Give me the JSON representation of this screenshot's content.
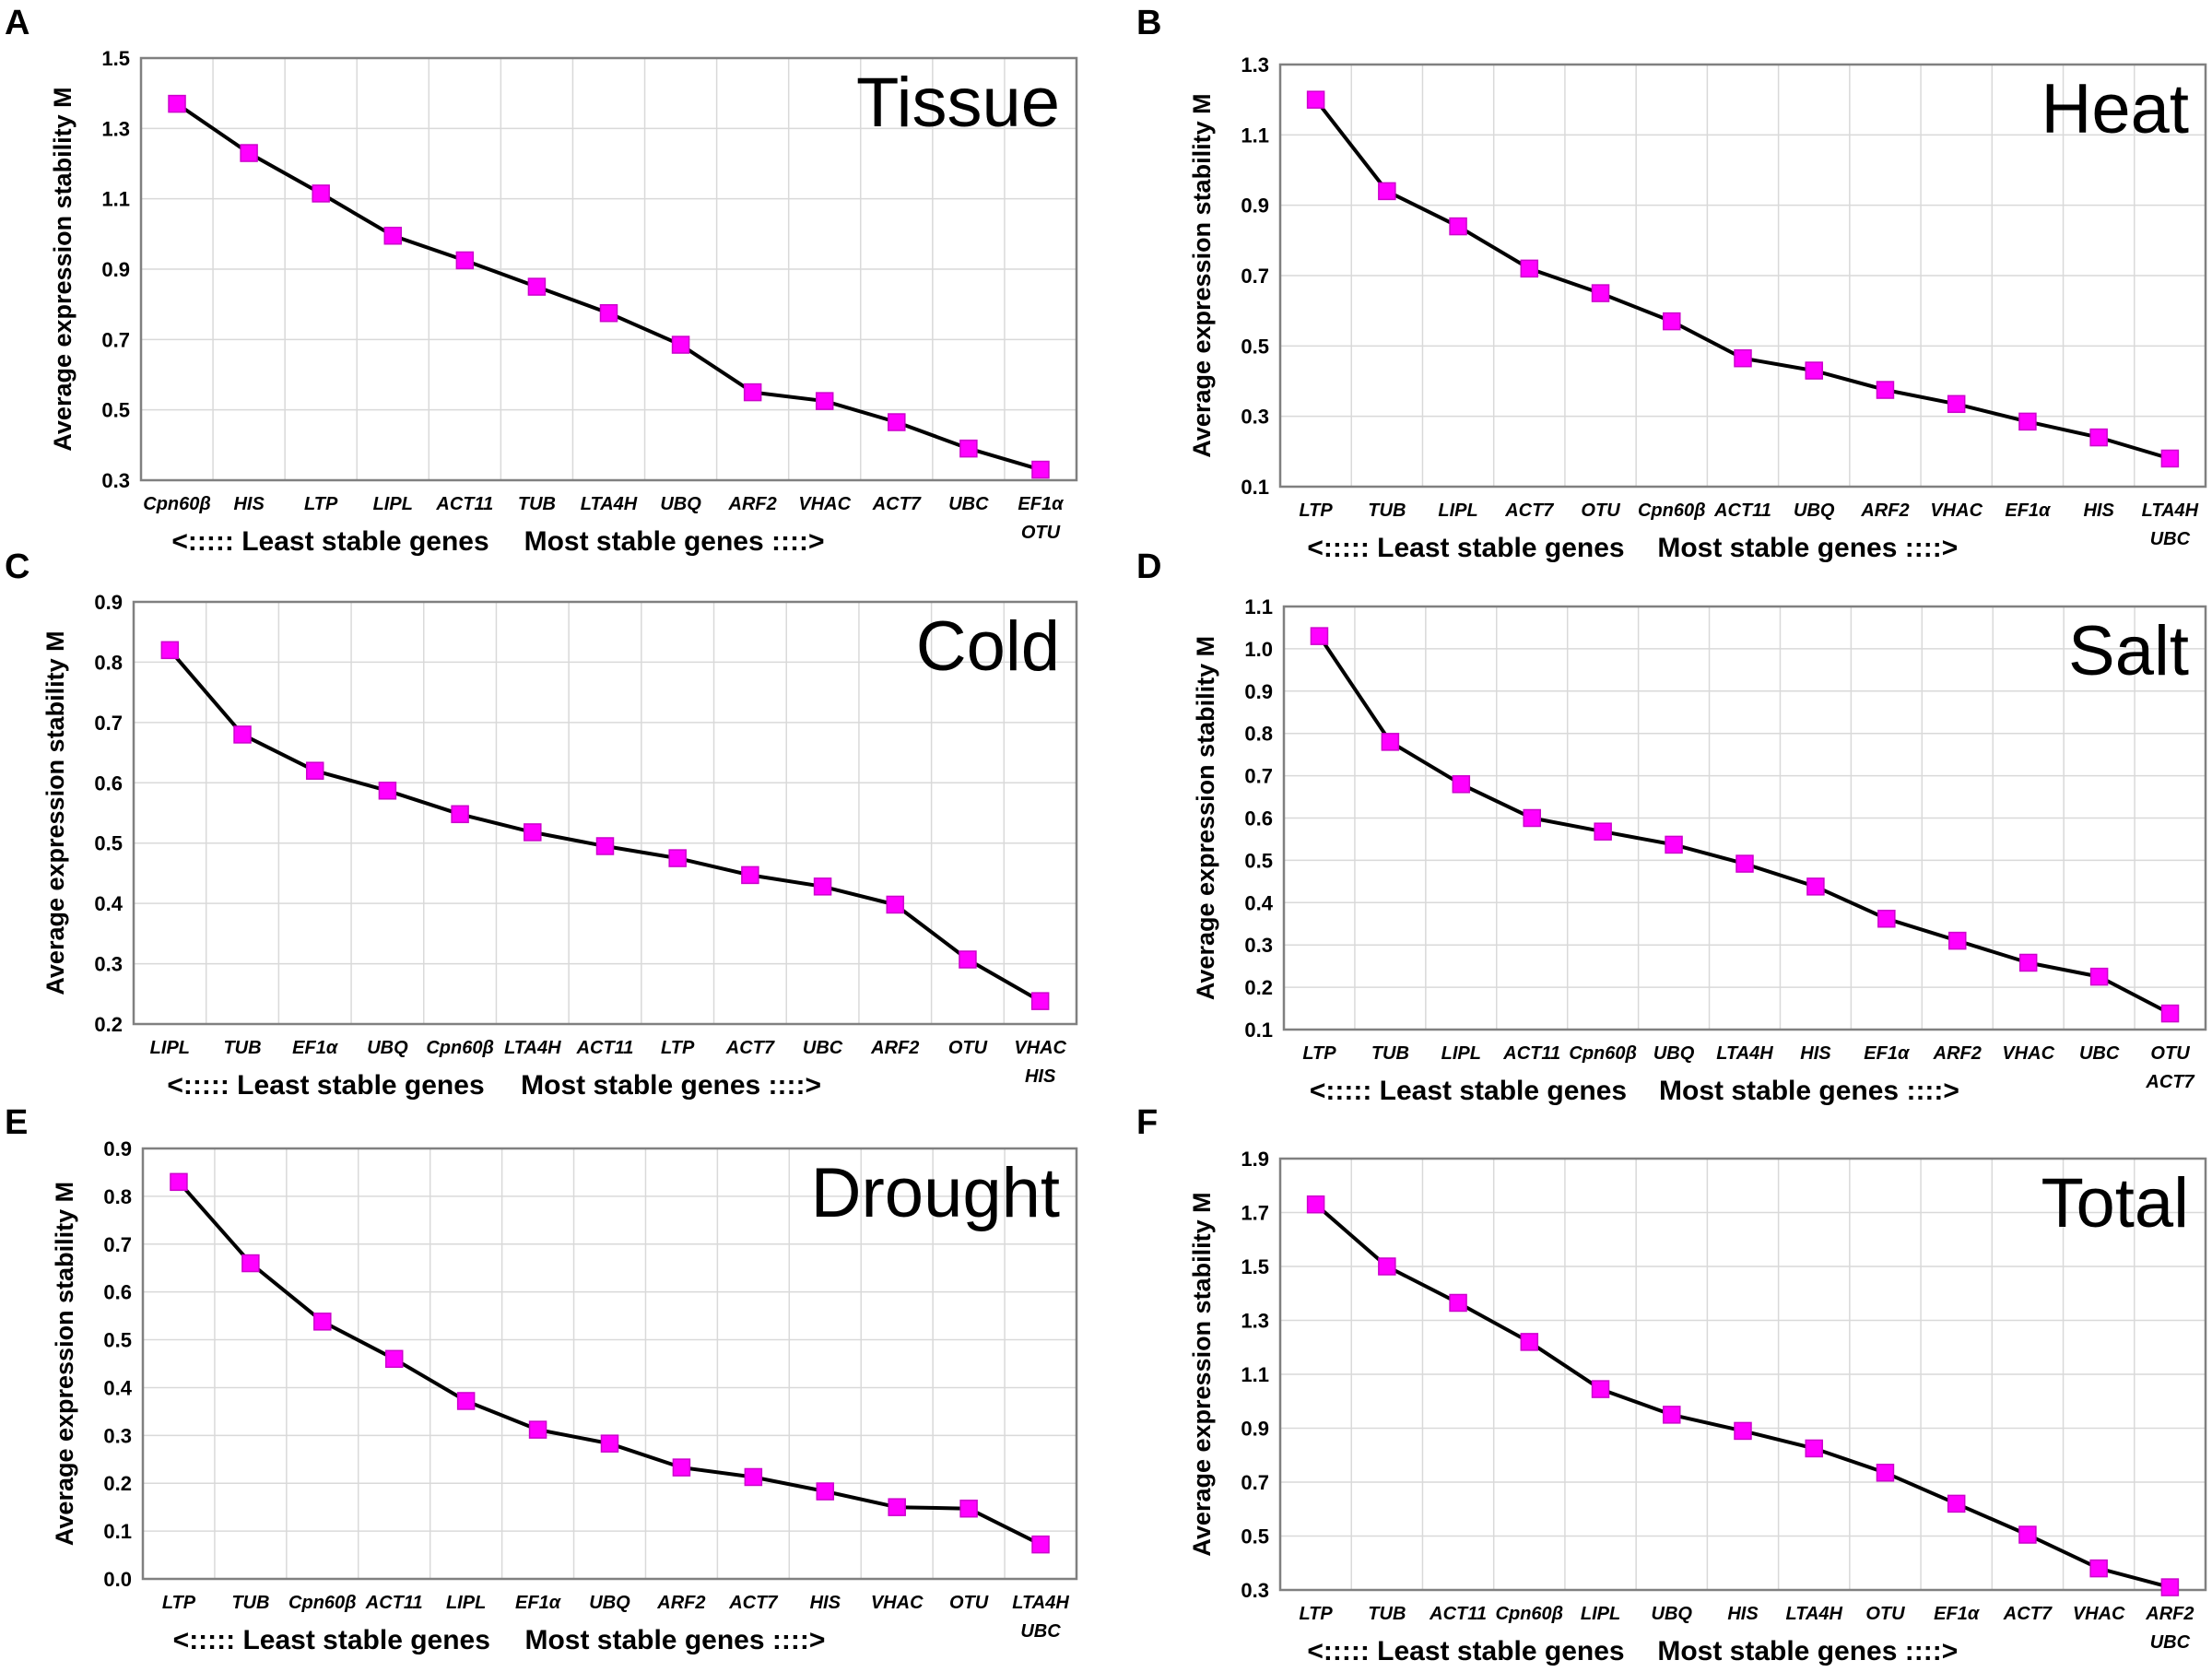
{
  "figure": {
    "ylabel": "Average expression stability M",
    "xlabel_left": "<:::::  Least stable genes",
    "xlabel_right": "Most stable genes ::::>",
    "line_color": "#000000",
    "marker_color": "#ff00ff",
    "marker_border": "#cc00cc",
    "grid_color": "#d9d9d9",
    "frame_color": "#808080"
  },
  "chart_data": [
    {
      "type": "line",
      "panel": "A",
      "title": "Tissue",
      "categories": [
        "Cpn60β",
        "HIS",
        "LTP",
        "LIPL",
        "ACT11",
        "TUB",
        "LTA4H",
        "UBQ",
        "ARF2",
        "VHAC",
        "ACT7",
        "UBC",
        "EF1α"
      ],
      "last_extra": "OTU",
      "values": [
        1.37,
        1.23,
        1.115,
        0.995,
        0.925,
        0.85,
        0.775,
        0.685,
        0.55,
        0.525,
        0.465,
        0.39,
        0.33
      ],
      "ylim": [
        0.3,
        1.5
      ],
      "yticks": [
        "0.3",
        "0.5",
        "0.7",
        "0.9",
        "1.1",
        "1.3",
        "1.5"
      ],
      "xlabel": "<:::::  Least stable genes   Most stable genes ::::>",
      "ylabel": "Average expression stability M"
    },
    {
      "type": "line",
      "panel": "B",
      "title": "Heat",
      "categories": [
        "LTP",
        "TUB",
        "LIPL",
        "ACT7",
        "OTU",
        "Cpn60β",
        "ACT11",
        "UBQ",
        "ARF2",
        "VHAC",
        "EF1α",
        "HIS",
        "LTA4H"
      ],
      "last_extra": "UBC",
      "values": [
        1.2,
        0.94,
        0.84,
        0.72,
        0.65,
        0.57,
        0.465,
        0.43,
        0.375,
        0.335,
        0.285,
        0.24,
        0.18
      ],
      "ylim": [
        0.1,
        1.3
      ],
      "yticks": [
        "0.1",
        "0.3",
        "0.5",
        "0.7",
        "0.9",
        "1.1",
        "1.3"
      ],
      "xlabel": "<:::::  Least stable genes   Most stable genes ::::>",
      "ylabel": "Average expression stability M"
    },
    {
      "type": "line",
      "panel": "C",
      "title": "Cold",
      "categories": [
        "LIPL",
        "TUB",
        "EF1α",
        "UBQ",
        "Cpn60β",
        "LTA4H",
        "ACT11",
        "LTP",
        "ACT7",
        "UBC",
        "ARF2",
        "OTU",
        "VHAC"
      ],
      "last_extra": "HIS",
      "values": [
        0.82,
        0.68,
        0.62,
        0.587,
        0.548,
        0.518,
        0.495,
        0.475,
        0.447,
        0.428,
        0.398,
        0.307,
        0.238
      ],
      "ylim": [
        0.2,
        0.9
      ],
      "yticks": [
        "0.2",
        "0.3",
        "0.4",
        "0.5",
        "0.6",
        "0.7",
        "0.8",
        "0.9"
      ],
      "xlabel": "<:::::  Least stable genes   Most stable genes ::::>",
      "ylabel": "Average expression stability M"
    },
    {
      "type": "line",
      "panel": "D",
      "title": "Salt",
      "categories": [
        "LTP",
        "TUB",
        "LIPL",
        "ACT11",
        "Cpn60β",
        "UBQ",
        "LTA4H",
        "HIS",
        "EF1α",
        "ARF2",
        "VHAC",
        "UBC",
        "OTU"
      ],
      "last_extra": "ACT7",
      "values": [
        1.03,
        0.78,
        0.68,
        0.6,
        0.568,
        0.537,
        0.492,
        0.438,
        0.362,
        0.31,
        0.258,
        0.225,
        0.138
      ],
      "ylim": [
        0.1,
        1.1
      ],
      "yticks": [
        "0.1",
        "0.2",
        "0.3",
        "0.4",
        "0.5",
        "0.6",
        "0.7",
        "0.8",
        "0.9",
        "1.0",
        "1.1"
      ],
      "xlabel": "<:::::  Least stable genes   Most stable genes ::::>",
      "ylabel": "Average expression stability M"
    },
    {
      "type": "line",
      "panel": "E",
      "title": "Drought",
      "categories": [
        "LTP",
        "TUB",
        "Cpn60β",
        "ACT11",
        "LIPL",
        "EF1α",
        "UBQ",
        "ARF2",
        "ACT7",
        "HIS",
        "VHAC",
        "OTU",
        "LTA4H"
      ],
      "last_extra": "UBC",
      "values": [
        0.83,
        0.66,
        0.538,
        0.46,
        0.372,
        0.312,
        0.283,
        0.233,
        0.213,
        0.183,
        0.15,
        0.147,
        0.072
      ],
      "ylim": [
        0.0,
        0.9
      ],
      "yticks": [
        "0.0",
        "0.1",
        "0.2",
        "0.3",
        "0.4",
        "0.5",
        "0.6",
        "0.7",
        "0.8",
        "0.9"
      ],
      "xlabel": "<:::::  Least stable genes   Most stable genes ::::>",
      "ylabel": "Average expression stability M"
    },
    {
      "type": "line",
      "panel": "F",
      "title": "Total",
      "categories": [
        "LTP",
        "TUB",
        "ACT11",
        "Cpn60β",
        "LIPL",
        "UBQ",
        "HIS",
        "LTA4H",
        "OTU",
        "EF1α",
        "ACT7",
        "VHAC",
        "ARF2"
      ],
      "last_extra": "UBC",
      "values": [
        1.73,
        1.5,
        1.365,
        1.22,
        1.045,
        0.95,
        0.89,
        0.825,
        0.735,
        0.62,
        0.505,
        0.38,
        0.31
      ],
      "ylim": [
        0.3,
        1.9
      ],
      "yticks": [
        "0.3",
        "0.5",
        "0.7",
        "0.9",
        "1.1",
        "1.3",
        "1.5",
        "1.7",
        "1.9"
      ],
      "xlabel": "<:::::  Least stable genes   Most stable genes ::::>",
      "ylabel": "Average expression stability M"
    }
  ]
}
